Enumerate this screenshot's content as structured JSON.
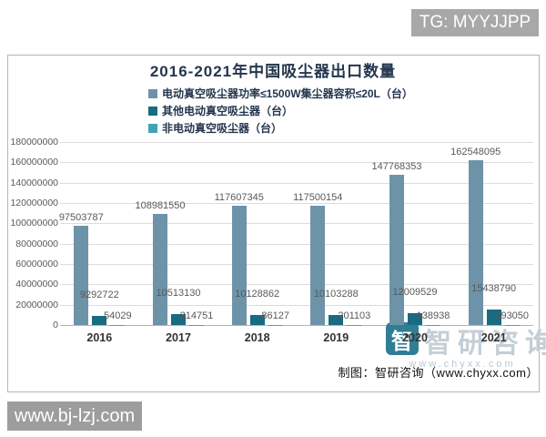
{
  "badges": {
    "tg": "TG: MYYJJPP",
    "site": "www.bj-lzj.com"
  },
  "chart_data": {
    "type": "bar",
    "title": "2016-2021年中国吸尘器出口数量",
    "categories": [
      "2016",
      "2017",
      "2018",
      "2019",
      "2020",
      "2021"
    ],
    "series": [
      {
        "name": "电动真空吸尘器功率≤1500W集尘器容积≤20L（台）",
        "color": "#6d93a8",
        "values": [
          97503787,
          108981550,
          117607345,
          117500154,
          147768353,
          162548095
        ]
      },
      {
        "name": "其他电动真空吸尘器（台）",
        "color": "#186b80",
        "values": [
          9292722,
          10513130,
          10128862,
          10103288,
          12009529,
          15438790
        ]
      },
      {
        "name": "非电动真空吸尘器（台）",
        "color": "#41a3b8",
        "values": [
          54029,
          214751,
          86127,
          201103,
          138938,
          293050
        ]
      }
    ],
    "ylim": [
      0,
      180000000
    ],
    "y_ticks": [
      "0",
      "20000000",
      "40000000",
      "60000000",
      "80000000",
      "100000000",
      "120000000",
      "140000000",
      "160000000",
      "180000000"
    ],
    "grid": true,
    "legend_position": "top-left-column"
  },
  "watermark": {
    "brand": "智研咨询",
    "url": "www.chyxx.com",
    "logo_glyph": "智"
  },
  "credit": "制图：智研咨询（www.chyxx.com）"
}
